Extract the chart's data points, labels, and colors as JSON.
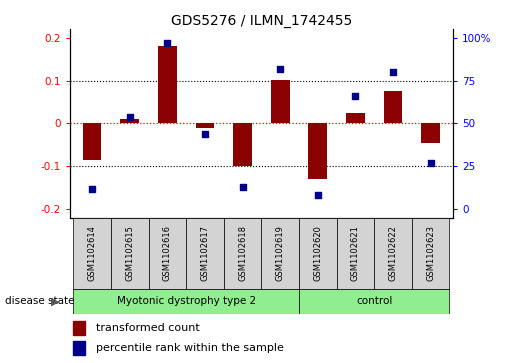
{
  "title": "GDS5276 / ILMN_1742455",
  "samples": [
    "GSM1102614",
    "GSM1102615",
    "GSM1102616",
    "GSM1102617",
    "GSM1102618",
    "GSM1102619",
    "GSM1102620",
    "GSM1102621",
    "GSM1102622",
    "GSM1102623"
  ],
  "red_values": [
    -0.085,
    0.01,
    0.18,
    -0.01,
    -0.1,
    0.101,
    -0.13,
    0.025,
    0.075,
    -0.045
  ],
  "blue_values": [
    12,
    54,
    97,
    44,
    13,
    82,
    8,
    66,
    80,
    27
  ],
  "ylim_left": [
    -0.22,
    0.22
  ],
  "ylim_right": [
    -2.2,
    22
  ],
  "yticks_left": [
    -0.2,
    -0.1,
    0.0,
    0.1,
    0.2
  ],
  "yticks_right": [
    0,
    2.5,
    5.0,
    7.5,
    10.0
  ],
  "ytick_labels_left": [
    "-0.2",
    "-0.1",
    "0",
    "0.1",
    "0.2"
  ],
  "ytick_labels_right": [
    "0",
    "25",
    "50",
    "75",
    "100%"
  ],
  "groups": [
    {
      "label": "Myotonic dystrophy type 2",
      "start": 0,
      "end": 6,
      "color": "#90EE90"
    },
    {
      "label": "control",
      "start": 6,
      "end": 10,
      "color": "#90EE90"
    }
  ],
  "disease_state_label": "disease state",
  "red_color": "#8B0000",
  "blue_color": "#00008B",
  "bar_width": 0.5,
  "dot_size": 18,
  "zero_line_color": "#FF0000",
  "plot_bg_color": "#ffffff",
  "legend_red": "transformed count",
  "legend_blue": "percentile rank within the sample",
  "box_color": "#d3d3d3"
}
